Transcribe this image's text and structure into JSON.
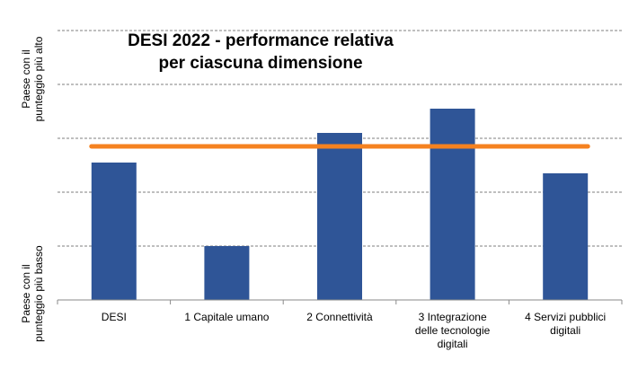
{
  "chart_data": {
    "type": "bar",
    "title_lines": [
      "DESI 2022 - performance relativa",
      "per ciascuna dimensione"
    ],
    "categories": [
      [
        "DESI"
      ],
      [
        "1 Capitale umano"
      ],
      [
        "2 Connettività"
      ],
      [
        "3 Integrazione",
        "delle tecnologie",
        "digitali"
      ],
      [
        "4 Servizi pubblici",
        "digitali"
      ]
    ],
    "values": [
      51,
      20,
      62,
      71,
      47
    ],
    "reference_line": {
      "value": 57,
      "color": "#F58220"
    },
    "ylabel_top": [
      "Paese con il",
      "punteggio più alto"
    ],
    "ylabel_bottom": [
      "Paese con il",
      "punteggio più basso"
    ],
    "ylim": [
      0,
      100
    ],
    "yticks": [
      0,
      20,
      40,
      60,
      80,
      100
    ],
    "grid": true,
    "bar_color": "#2F5597",
    "grid_color": "#7f7f7f"
  }
}
